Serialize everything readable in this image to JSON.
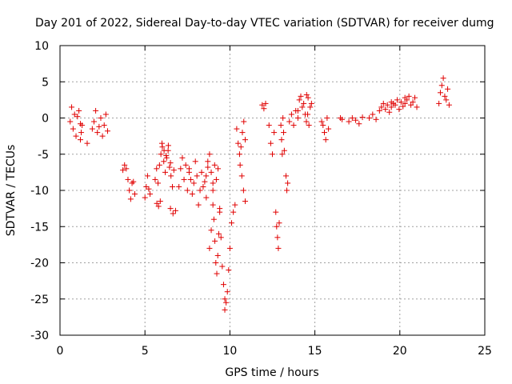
{
  "chart_data": {
    "type": "scatter",
    "title": "Day 201 of 2022, Sidereal Day-to-day VTEC variation (SDTVAR) for receiver dumg",
    "xlabel": "GPS time / hours",
    "ylabel": "SDTVAR / TECUs",
    "xlim": [
      0,
      25
    ],
    "ylim": [
      -30,
      10
    ],
    "xticks": [
      0,
      5,
      10,
      15,
      20,
      25
    ],
    "yticks": [
      -30,
      -25,
      -20,
      -15,
      -10,
      -5,
      0,
      5,
      10
    ],
    "grid": true,
    "marker": "+",
    "color": "#e00000",
    "series": [
      {
        "name": "SDTVAR",
        "segments": [
          {
            "x0": 0.6,
            "x1": 1.2,
            "y": [
              -0.5,
              1.5,
              -1.5,
              0.5,
              -2.5,
              0.2,
              1.0,
              -0.8
            ]
          },
          {
            "x0": 1.2,
            "x1": 1.3,
            "y": [
              -3.0,
              -2.0,
              -1.0
            ]
          },
          {
            "x0": 1.6,
            "x1": 1.7,
            "y": [
              -3.5
            ]
          },
          {
            "x0": 1.9,
            "x1": 2.8,
            "y": [
              -1.5,
              -0.5,
              1.0,
              -2.0,
              -1.2,
              0.0,
              -2.5,
              -1.0,
              0.5,
              -1.8
            ]
          },
          {
            "x0": 3.7,
            "x1": 3.9,
            "y": [
              -7.2,
              -6.5,
              -7.0
            ]
          },
          {
            "x0": 4.0,
            "x1": 4.4,
            "y": [
              -8.5,
              -10.0,
              -11.2,
              -9.0,
              -8.8,
              -10.5
            ]
          },
          {
            "x0": 5.0,
            "x1": 5.3,
            "y": [
              -11.0,
              -9.5,
              -8.0,
              -9.8,
              -10.5
            ]
          },
          {
            "x0": 5.7,
            "x1": 5.9,
            "y": [
              -11.8,
              -12.2,
              -11.5
            ]
          },
          {
            "x0": 5.6,
            "x1": 6.7,
            "y": [
              -8.5,
              -7.0,
              -9.0,
              -6.5,
              -5.0,
              -4.0,
              -6.0,
              -7.5,
              -5.5,
              -4.5,
              -6.8,
              -8.0,
              -9.5,
              -7.2
            ]
          },
          {
            "x0": 6.0,
            "x1": 6.5,
            "y": [
              -3.5,
              -4.5,
              -5.2,
              -3.8,
              -6.2
            ]
          },
          {
            "x0": 6.5,
            "x1": 6.8,
            "y": [
              -12.5,
              -13.2,
              -12.8
            ]
          },
          {
            "x0": 7.0,
            "x1": 7.6,
            "y": [
              -9.5,
              -7.0,
              -5.5,
              -8.5,
              -6.5,
              -10.0,
              -7.5
            ]
          },
          {
            "x0": 7.6,
            "x1": 8.7,
            "y": [
              -7.0,
              -8.5,
              -10.5,
              -9.0,
              -6.0,
              -8.0,
              -12.0,
              -10.0,
              -7.5,
              -9.5,
              -8.8,
              -11.0,
              -6.8
            ]
          },
          {
            "x0": 8.6,
            "x1": 9.3,
            "y": [
              -8.0,
              -6.0,
              -5.0,
              -7.5,
              -9.0,
              -6.5,
              -8.5,
              -7.0
            ]
          },
          {
            "x0": 8.8,
            "x1": 9.0,
            "y": [
              -18.0,
              -15.5,
              -12.0
            ]
          },
          {
            "x0": 9.0,
            "x1": 9.4,
            "y": [
              -10.0,
              -14.0,
              -17.0,
              -20.0,
              -21.5,
              -19.0,
              -16.0,
              -13.0
            ]
          },
          {
            "x0": 9.4,
            "x1": 9.7,
            "y": [
              -12.5,
              -16.5,
              -20.5,
              -23.0,
              -25.0
            ]
          },
          {
            "x0": 9.7,
            "x1": 10.0,
            "y": [
              -26.5,
              -25.5,
              -24.0,
              -21.0,
              -18.0
            ]
          },
          {
            "x0": 10.1,
            "x1": 10.3,
            "y": [
              -14.5,
              -13.0,
              -12.0
            ]
          },
          {
            "x0": 10.4,
            "x1": 10.9,
            "y": [
              -1.5,
              -3.5,
              -5.0,
              -4.0,
              -2.0,
              -0.5,
              -3.0
            ]
          },
          {
            "x0": 10.6,
            "x1": 10.9,
            "y": [
              -6.5,
              -8.0,
              -10.0,
              -11.5
            ]
          },
          {
            "x0": 11.9,
            "x1": 12.1,
            "y": [
              1.8,
              1.3,
              2.0
            ]
          },
          {
            "x0": 12.3,
            "x1": 12.6,
            "y": [
              -1.0,
              -3.5,
              -5.0,
              -2.0
            ]
          },
          {
            "x0": 12.7,
            "x1": 12.9,
            "y": [
              -13.0,
              -15.0,
              -16.5,
              -18.0,
              -14.5
            ]
          },
          {
            "x0": 13.0,
            "x1": 13.2,
            "y": [
              -1.0,
              -3.0,
              -5.0,
              0.0,
              -2.0,
              -4.5
            ]
          },
          {
            "x0": 13.3,
            "x1": 13.4,
            "y": [
              -8.0,
              -10.0,
              -9.0
            ]
          },
          {
            "x0": 13.5,
            "x1": 14.0,
            "y": [
              -0.5,
              0.5,
              -1.0,
              1.0,
              0.0
            ]
          },
          {
            "x0": 14.0,
            "x1": 14.6,
            "y": [
              1.0,
              2.5,
              3.0,
              1.5,
              2.0,
              0.5,
              3.2,
              2.8
            ]
          },
          {
            "x0": 14.5,
            "x1": 14.8,
            "y": [
              -0.5,
              0.5,
              -1.0,
              1.5,
              2.0
            ]
          },
          {
            "x0": 15.4,
            "x1": 15.8,
            "y": [
              -0.5,
              -1.0,
              -2.0,
              -3.0,
              0.0,
              -1.5
            ]
          },
          {
            "x0": 16.5,
            "x1": 16.6,
            "y": [
              0.0,
              -0.2
            ]
          },
          {
            "x0": 17.0,
            "x1": 17.8,
            "y": [
              -0.5,
              0.0,
              -0.3,
              -0.8,
              0.1
            ]
          },
          {
            "x0": 18.2,
            "x1": 18.6,
            "y": [
              0.0,
              0.5,
              -0.2
            ]
          },
          {
            "x0": 18.8,
            "x1": 19.5,
            "y": [
              1.0,
              1.5,
              2.0,
              1.2,
              1.8,
              0.8,
              2.2
            ]
          },
          {
            "x0": 19.5,
            "x1": 20.3,
            "y": [
              1.5,
              2.0,
              1.8,
              2.5,
              1.2,
              2.2,
              1.6,
              2.8
            ]
          },
          {
            "x0": 20.3,
            "x1": 21.0,
            "y": [
              2.0,
              2.5,
              3.0,
              1.8,
              2.2,
              2.8,
              1.5
            ]
          },
          {
            "x0": 22.3,
            "x1": 22.9,
            "y": [
              2.0,
              3.5,
              4.5,
              5.5,
              3.0,
              2.5,
              4.0,
              1.8
            ]
          }
        ]
      }
    ]
  }
}
